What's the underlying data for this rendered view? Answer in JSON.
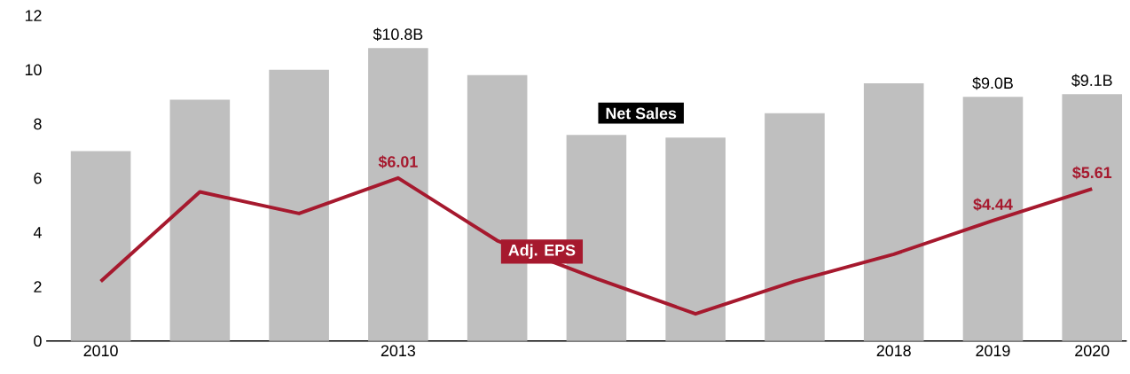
{
  "chart_data": {
    "type": "bar",
    "categories": [
      "2010",
      null,
      null,
      "2013",
      null,
      null,
      null,
      null,
      "2018",
      "2019",
      "2020"
    ],
    "ylim": [
      0,
      12
    ],
    "yticks": [
      0,
      2,
      4,
      6,
      8,
      10,
      12
    ],
    "series": [
      {
        "name": "Net Sales",
        "color": "#bfbfbf",
        "values": [
          7.0,
          8.9,
          10.0,
          10.8,
          9.8,
          7.6,
          7.5,
          8.4,
          9.5,
          9.0,
          9.1
        ],
        "value_labels": [
          null,
          null,
          null,
          "$10.8B",
          null,
          null,
          null,
          null,
          null,
          "$9.0B",
          "$9.1B"
        ]
      },
      {
        "name": "Adj. EPS",
        "type": "line",
        "color": "#a6192e",
        "values": [
          2.2,
          5.5,
          4.7,
          6.01,
          3.7,
          2.3,
          1.0,
          2.2,
          3.2,
          4.44,
          5.61
        ],
        "value_labels": [
          null,
          null,
          null,
          "$6.01",
          null,
          null,
          null,
          null,
          null,
          "$4.44",
          "$5.61"
        ]
      }
    ]
  }
}
